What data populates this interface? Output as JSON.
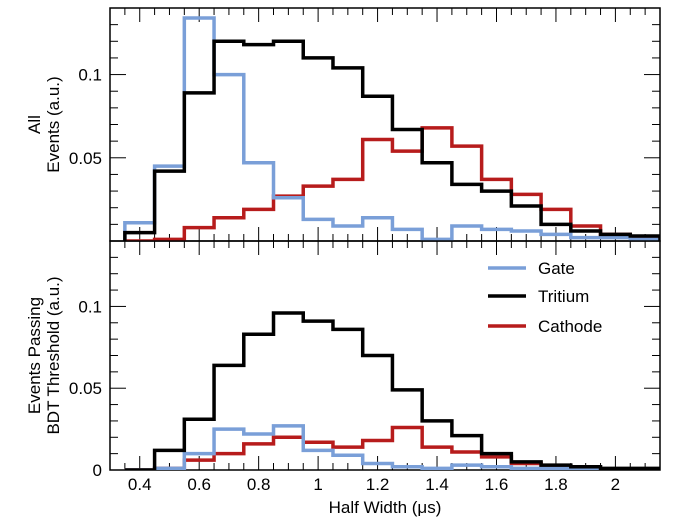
{
  "chart_data": [
    {
      "type": "histogram",
      "panel": "top",
      "ylabel_lines": [
        "All",
        "Events (a.u.)"
      ],
      "ylim": [
        0,
        0.14
      ],
      "xlim": [
        0.3,
        2.15
      ],
      "y_ticks": [
        {
          "value": 0.05,
          "label": "0.05"
        },
        {
          "value": 0.1,
          "label": "0.1"
        }
      ],
      "bin_edges": [
        0.35,
        0.45,
        0.55,
        0.65,
        0.75,
        0.85,
        0.95,
        1.05,
        1.15,
        1.25,
        1.35,
        1.45,
        1.55,
        1.65,
        1.75,
        1.85,
        1.95,
        2.05,
        2.15
      ],
      "series": [
        {
          "name": "Gate",
          "color": "#7a9fd8",
          "values": [
            0.011,
            0.045,
            0.134,
            0.1,
            0.047,
            0.026,
            0.013,
            0.009,
            0.014,
            0.007,
            0.001,
            0.009,
            0.007,
            0.006,
            0.004,
            0.002,
            0.002,
            0.001
          ]
        },
        {
          "name": "Tritium",
          "color": "#000000",
          "values": [
            0.005,
            0.042,
            0.089,
            0.12,
            0.118,
            0.12,
            0.11,
            0.104,
            0.087,
            0.067,
            0.047,
            0.034,
            0.03,
            0.021,
            0.01,
            0.006,
            0.004,
            0.003
          ]
        },
        {
          "name": "Cathode",
          "color": "#b71c1c",
          "values": [
            0.0,
            0.001,
            0.008,
            0.014,
            0.019,
            0.027,
            0.033,
            0.037,
            0.061,
            0.054,
            0.068,
            0.057,
            0.037,
            0.028,
            0.019,
            0.009,
            0.004,
            0.002
          ]
        }
      ]
    },
    {
      "type": "histogram",
      "panel": "bottom",
      "ylabel_lines": [
        "Events Passing",
        "BDT Threshold (a.u.)"
      ],
      "xlabel": "Half Width (μs)",
      "ylim": [
        0,
        0.14
      ],
      "xlim": [
        0.3,
        2.15
      ],
      "y_ticks": [
        {
          "value": 0,
          "label": "0"
        },
        {
          "value": 0.05,
          "label": "0.05"
        },
        {
          "value": 0.1,
          "label": "0.1"
        }
      ],
      "x_ticks": [
        {
          "value": 0.4,
          "label": "0.4"
        },
        {
          "value": 0.6,
          "label": "0.6"
        },
        {
          "value": 0.8,
          "label": "0.8"
        },
        {
          "value": 1.0,
          "label": "1"
        },
        {
          "value": 1.2,
          "label": "1.2"
        },
        {
          "value": 1.4,
          "label": "1.4"
        },
        {
          "value": 1.6,
          "label": "1.6"
        },
        {
          "value": 1.8,
          "label": "1.8"
        },
        {
          "value": 2.0,
          "label": "2"
        }
      ],
      "bin_edges": [
        0.35,
        0.45,
        0.55,
        0.65,
        0.75,
        0.85,
        0.95,
        1.05,
        1.15,
        1.25,
        1.35,
        1.45,
        1.55,
        1.65,
        1.75,
        1.85,
        1.95,
        2.05,
        2.15
      ],
      "legend": {
        "position": "top-right",
        "entries": [
          "Gate",
          "Tritium",
          "Cathode"
        ]
      },
      "series": [
        {
          "name": "Gate",
          "color": "#7a9fd8",
          "values": [
            0.0,
            0.001,
            0.01,
            0.025,
            0.022,
            0.027,
            0.012,
            0.009,
            0.004,
            0.002,
            0.001,
            0.003,
            0.002,
            0.001,
            0.001,
            0.0,
            0.0,
            0.0
          ]
        },
        {
          "name": "Tritium",
          "color": "#000000",
          "values": [
            0.0,
            0.012,
            0.031,
            0.064,
            0.083,
            0.096,
            0.091,
            0.086,
            0.07,
            0.049,
            0.03,
            0.021,
            0.01,
            0.005,
            0.003,
            0.002,
            0.001,
            0.001
          ]
        },
        {
          "name": "Cathode",
          "color": "#b71c1c",
          "values": [
            0.0,
            0.001,
            0.006,
            0.01,
            0.016,
            0.02,
            0.017,
            0.014,
            0.018,
            0.026,
            0.014,
            0.011,
            0.008,
            0.004,
            0.002,
            0.001,
            0.0,
            0.0
          ]
        }
      ]
    }
  ]
}
